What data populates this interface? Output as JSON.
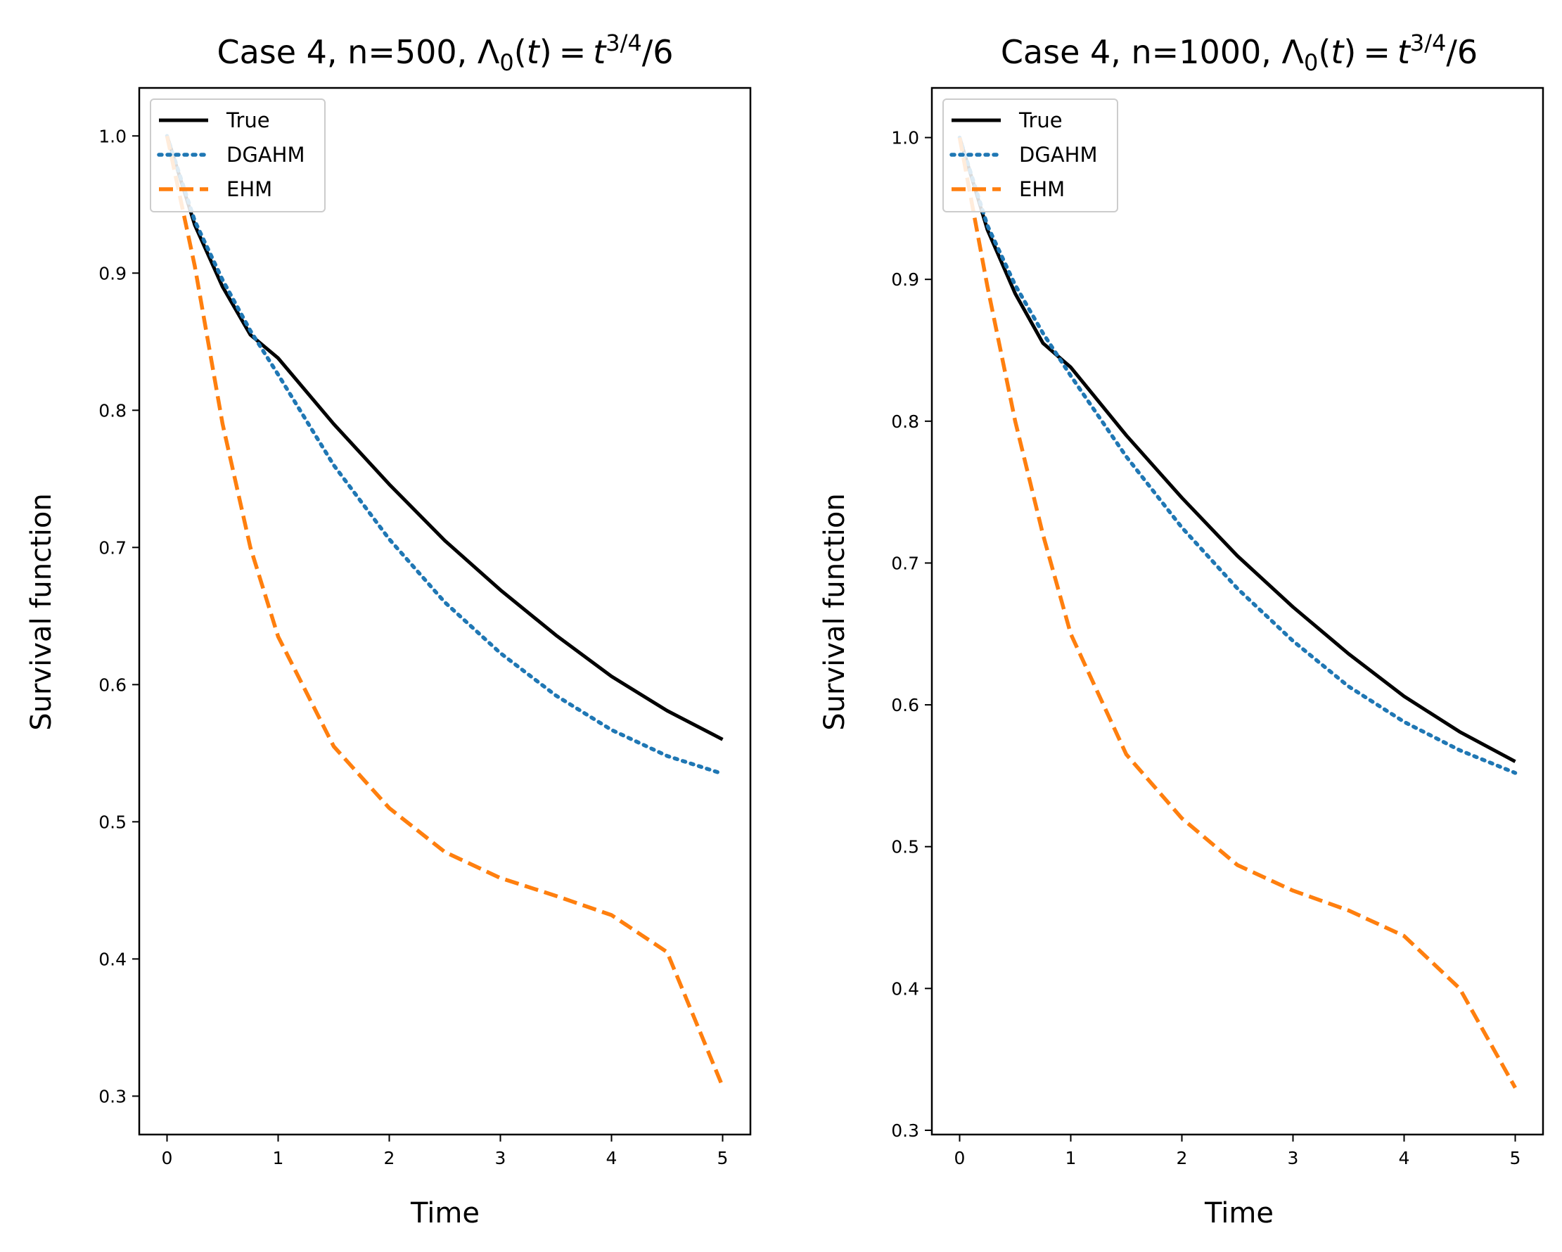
{
  "chart_data": [
    {
      "type": "line",
      "title": "Case 4, n=500, Λ₀(t) = t^{3/4}/6",
      "title_parts": {
        "prefix": "Case 4, n=500, ",
        "suffix": "/6"
      },
      "xlabel": "Time",
      "ylabel": "Survival function",
      "xlim": [
        -0.25,
        5.25
      ],
      "ylim": [
        0.272,
        1.035
      ],
      "xticks": [
        0,
        1,
        2,
        3,
        4,
        5
      ],
      "xtick_labels": [
        "0",
        "1",
        "2",
        "3",
        "4",
        "5"
      ],
      "yticks": [
        0.3,
        0.4,
        0.5,
        0.6,
        0.7,
        0.8,
        0.9,
        1.0
      ],
      "ytick_labels": [
        "0.3",
        "0.4",
        "0.5",
        "0.6",
        "0.7",
        "0.8",
        "0.9",
        "1.0"
      ],
      "grid": false,
      "legend_position": "top-left",
      "x": [
        0,
        0.25,
        0.5,
        0.75,
        1,
        1.5,
        2,
        2.5,
        3,
        3.5,
        4,
        4.5,
        5
      ],
      "series": [
        {
          "name": "True",
          "color": "#000000",
          "style": "solid",
          "values": [
            1.0,
            0.935,
            0.89,
            0.855,
            0.838,
            0.79,
            0.746,
            0.705,
            0.669,
            0.636,
            0.606,
            0.581,
            0.56
          ]
        },
        {
          "name": "DGAHM",
          "color": "#1f77b4",
          "style": "dotted",
          "values": [
            1.0,
            0.938,
            0.895,
            0.858,
            0.826,
            0.76,
            0.706,
            0.66,
            0.623,
            0.592,
            0.567,
            0.548,
            0.535
          ]
        },
        {
          "name": "EHM",
          "color": "#ff7f0e",
          "style": "dashed",
          "values": [
            1.0,
            0.905,
            0.79,
            0.7,
            0.635,
            0.555,
            0.51,
            0.478,
            0.459,
            0.446,
            0.432,
            0.405,
            0.307
          ]
        }
      ]
    },
    {
      "type": "line",
      "title": "Case 4, n=1000, Λ₀(t) = t^{3/4}/6",
      "title_parts": {
        "prefix": "Case 4, n=1000, ",
        "suffix": "/6"
      },
      "xlabel": "Time",
      "ylabel": "Survival function",
      "xlim": [
        -0.25,
        5.25
      ],
      "ylim": [
        0.297,
        1.035
      ],
      "xticks": [
        0,
        1,
        2,
        3,
        4,
        5
      ],
      "xtick_labels": [
        "0",
        "1",
        "2",
        "3",
        "4",
        "5"
      ],
      "yticks": [
        0.3,
        0.4,
        0.5,
        0.6,
        0.7,
        0.8,
        0.9,
        1.0
      ],
      "ytick_labels": [
        "0.3",
        "0.4",
        "0.5",
        "0.6",
        "0.7",
        "0.8",
        "0.9",
        "1.0"
      ],
      "grid": false,
      "legend_position": "top-left",
      "x": [
        0,
        0.25,
        0.5,
        0.75,
        1,
        1.5,
        2,
        2.5,
        3,
        3.5,
        4,
        4.5,
        5
      ],
      "series": [
        {
          "name": "True",
          "color": "#000000",
          "style": "solid",
          "values": [
            1.0,
            0.935,
            0.89,
            0.855,
            0.838,
            0.79,
            0.746,
            0.705,
            0.669,
            0.636,
            0.606,
            0.581,
            0.56
          ]
        },
        {
          "name": "DGAHM",
          "color": "#1f77b4",
          "style": "dotted",
          "values": [
            1.0,
            0.938,
            0.896,
            0.862,
            0.832,
            0.775,
            0.725,
            0.682,
            0.645,
            0.613,
            0.588,
            0.568,
            0.552
          ]
        },
        {
          "name": "EHM",
          "color": "#ff7f0e",
          "style": "dashed",
          "values": [
            1.0,
            0.895,
            0.8,
            0.72,
            0.65,
            0.565,
            0.52,
            0.487,
            0.469,
            0.455,
            0.437,
            0.4,
            0.33
          ]
        }
      ]
    }
  ]
}
